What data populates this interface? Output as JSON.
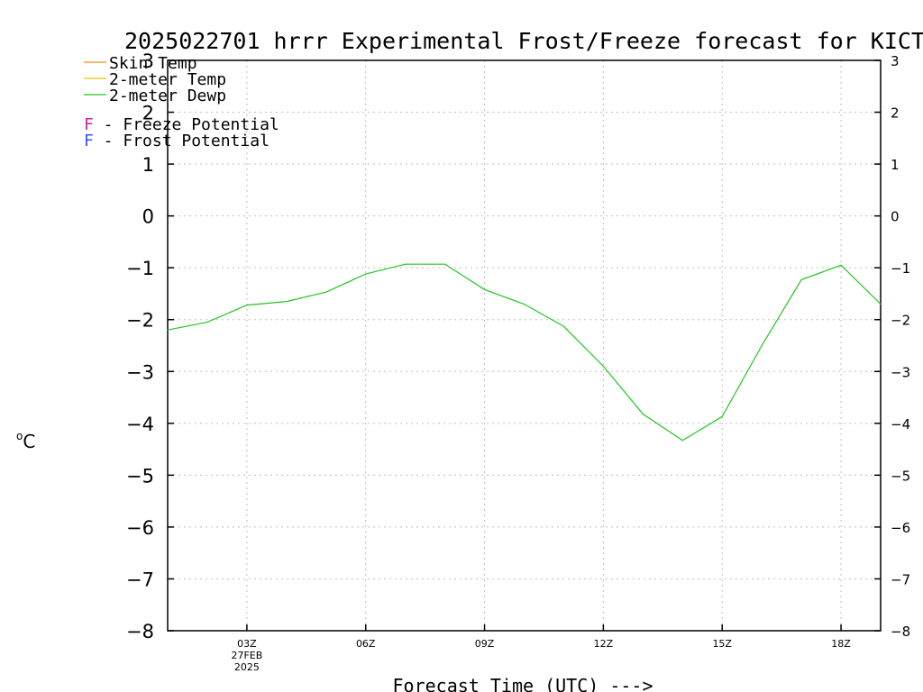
{
  "colors": {
    "skin_temp": "#ff8c1a",
    "temp_2m": "#e6c800",
    "dewp_2m": "#22c422",
    "freeze_potential": "#cc2299",
    "frost_potential": "#3355ff",
    "grid": "#bdbdbd",
    "axis": "#000000"
  },
  "chart_data": {
    "type": "line",
    "title": "2025022701 hrrr Experimental Frost/Freeze forecast for KICT",
    "xlabel": "Forecast Time (UTC) --->",
    "ylabel": "°C",
    "ylabel_superscript": "o",
    "ylabel_unit": "C",
    "ylim": [
      -8,
      3
    ],
    "yticks": [
      3,
      2,
      1,
      0,
      -1,
      -2,
      -3,
      -4,
      -5,
      -6,
      -7,
      -8
    ],
    "ytick_labels": [
      "3",
      "2",
      "1",
      "0",
      "−1",
      "−2",
      "−3",
      "−4",
      "−5",
      "−6",
      "−7",
      "−8"
    ],
    "xlim": [
      1,
      19
    ],
    "xticks": [
      {
        "x": 3,
        "label": "03Z",
        "sub": [
          "27FEB",
          "2025"
        ]
      },
      {
        "x": 6,
        "label": "06Z",
        "sub": []
      },
      {
        "x": 9,
        "label": "09Z",
        "sub": []
      },
      {
        "x": 12,
        "label": "12Z",
        "sub": []
      },
      {
        "x": 15,
        "label": "15Z",
        "sub": []
      },
      {
        "x": 18,
        "label": "18Z",
        "sub": []
      }
    ],
    "grid": true,
    "legend_position": "top-left",
    "legend": [
      {
        "key": "skin",
        "label": "Skin Temp",
        "color": "#ff8c1a"
      },
      {
        "key": "t2m",
        "label": "2-meter Temp",
        "color": "#e6c800"
      },
      {
        "key": "d2m",
        "label": "2-meter Dewp",
        "color": "#22c422"
      }
    ],
    "potential_legend": [
      {
        "symbol": "F",
        "label": " - Freeze Potential",
        "color": "#cc2299"
      },
      {
        "symbol": "F",
        "label": " - Frost Potential",
        "color": "#3355ff"
      }
    ],
    "series": [
      {
        "name": "2-meter Dewp",
        "color": "#22c422",
        "x": [
          1,
          2,
          3,
          4,
          5,
          6,
          7,
          8,
          9,
          10,
          11,
          12,
          13,
          14,
          15,
          16,
          17,
          18,
          19
        ],
        "values": [
          -2.2,
          -2.05,
          -1.72,
          -1.65,
          -1.47,
          -1.12,
          -0.93,
          -0.93,
          -1.42,
          -1.7,
          -2.13,
          -2.9,
          -3.82,
          -4.33,
          -3.87,
          -2.5,
          -1.23,
          -0.95,
          -1.7
        ]
      }
    ]
  }
}
